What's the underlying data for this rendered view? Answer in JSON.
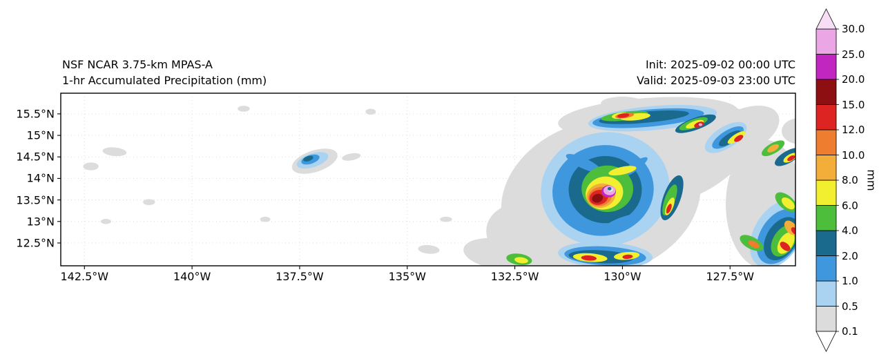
{
  "header": {
    "title": "NSF NCAR 3.75-km MPAS-A",
    "subtitle": "1-hr Accumulated Precipitation (mm)",
    "init": "Init: 2025-09-02 00:00 UTC",
    "valid": "Valid: 2025-09-03 23:00 UTC"
  },
  "chart_data": {
    "type": "heatmap",
    "title": "NSF NCAR 3.75-km MPAS-A",
    "subtitle": "1-hr Accumulated Precipitation (mm)",
    "init_time": "2025-09-02 00:00 UTC",
    "valid_time": "2025-09-03 23:00 UTC",
    "xlabel": "",
    "ylabel": "",
    "xlim": [
      -143.05,
      -125.98
    ],
    "ylim": [
      11.97,
      15.98
    ],
    "grid": "dotted",
    "legend_position": "right",
    "x_ticks": [
      {
        "value": -142.5,
        "label": "142.5°W"
      },
      {
        "value": -140.0,
        "label": "140°W"
      },
      {
        "value": -137.5,
        "label": "137.5°W"
      },
      {
        "value": -135.0,
        "label": "135°W"
      },
      {
        "value": -132.5,
        "label": "132.5°W"
      },
      {
        "value": -130.0,
        "label": "130°W"
      },
      {
        "value": -127.5,
        "label": "127.5°W"
      }
    ],
    "y_ticks": [
      {
        "value": 15.5,
        "label": "15.5°N"
      },
      {
        "value": 15.0,
        "label": "15°N"
      },
      {
        "value": 14.5,
        "label": "14.5°N"
      },
      {
        "value": 14.0,
        "label": "14°N"
      },
      {
        "value": 13.5,
        "label": "13.5°N"
      },
      {
        "value": 13.0,
        "label": "13°N"
      },
      {
        "value": 12.5,
        "label": "12.5°N"
      }
    ],
    "colorbar": {
      "units": "mm",
      "orientation": "vertical",
      "extend": "both",
      "levels": [
        0.1,
        0.5,
        1,
        2,
        4,
        6,
        8,
        10,
        12,
        15,
        20,
        25,
        30
      ],
      "labels": [
        "0.1",
        "0.5",
        "1.0",
        "2.0",
        "4.0",
        "6.0",
        "8.0",
        "10.0",
        "12.0",
        "15.0",
        "20.0",
        "25.0",
        "30.0"
      ],
      "colors": [
        "#dcdcdc",
        "#a9d3f0",
        "#3f97dd",
        "#1a6a8e",
        "#4dbe3b",
        "#f2ef30",
        "#f3ae3a",
        "#ee7d30",
        "#dd2423",
        "#8e0f12",
        "#c126c1",
        "#eba6e6"
      ],
      "under_color": "#ffffff",
      "over_color": "#f7ddf5"
    },
    "features_format": "[lon_deg, lat_deg, rx_deg, ry_deg, rotation_deg, precip_level_mm]",
    "features": [
      [
        -130.5,
        13.55,
        2.35,
        1.8,
        -15,
        0.1
      ],
      [
        -128.5,
        14.55,
        1.7,
        0.95,
        -28,
        0.1
      ],
      [
        -131.9,
        12.55,
        1.3,
        0.85,
        18,
        0.1
      ],
      [
        -129.4,
        15.42,
        2.1,
        0.45,
        -4,
        0.1
      ],
      [
        -126.7,
        13.4,
        0.9,
        1.5,
        0,
        0.1
      ],
      [
        -127.2,
        15.1,
        0.9,
        0.5,
        -25,
        0.1
      ],
      [
        -132.9,
        12.25,
        0.8,
        0.35,
        8,
        0.1
      ],
      [
        -137.15,
        14.4,
        0.55,
        0.25,
        -18,
        0.1
      ],
      [
        -130.0,
        15.75,
        0.5,
        0.15,
        0,
        0.1
      ],
      [
        -138.8,
        15.62,
        0.14,
        0.07,
        0,
        0.1
      ],
      [
        -135.85,
        15.55,
        0.12,
        0.07,
        0,
        0.1
      ],
      [
        -136.3,
        14.5,
        0.22,
        0.08,
        -10,
        0.1
      ],
      [
        -141.8,
        14.62,
        0.28,
        0.1,
        5,
        0.1
      ],
      [
        -142.35,
        14.28,
        0.18,
        0.09,
        0,
        0.1
      ],
      [
        -141.0,
        13.45,
        0.14,
        0.07,
        0,
        0.1
      ],
      [
        -142.0,
        13.0,
        0.12,
        0.06,
        0,
        0.1
      ],
      [
        -138.3,
        13.05,
        0.12,
        0.06,
        0,
        0.1
      ],
      [
        -134.1,
        13.05,
        0.14,
        0.06,
        0,
        0.1
      ],
      [
        -134.5,
        12.35,
        0.25,
        0.1,
        5,
        0.1
      ],
      [
        -125.9,
        15.1,
        0.4,
        0.3,
        0,
        0.1
      ],
      [
        -130.4,
        13.75,
        1.5,
        1.32,
        -10,
        0.5
      ],
      [
        -129.3,
        15.4,
        1.5,
        0.28,
        -5,
        0.5
      ],
      [
        -130.4,
        12.22,
        1.1,
        0.3,
        3,
        0.5
      ],
      [
        -137.2,
        14.42,
        0.38,
        0.16,
        -18,
        0.5
      ],
      [
        -127.6,
        14.95,
        0.55,
        0.25,
        -32,
        0.5
      ],
      [
        -126.4,
        12.7,
        0.55,
        0.85,
        30,
        0.5
      ],
      [
        -130.45,
        13.72,
        1.18,
        1.05,
        -10,
        1
      ],
      [
        -129.4,
        15.4,
        1.3,
        0.2,
        -5,
        1
      ],
      [
        -130.4,
        12.2,
        0.95,
        0.22,
        3,
        1
      ],
      [
        -137.25,
        14.44,
        0.22,
        0.1,
        -18,
        1
      ],
      [
        -127.55,
        14.95,
        0.42,
        0.16,
        -32,
        1
      ],
      [
        -126.35,
        12.65,
        0.45,
        0.7,
        32,
        1
      ],
      [
        -130.4,
        13.74,
        0.85,
        0.78,
        0,
        2
      ],
      [
        -129.5,
        15.42,
        1.05,
        0.13,
        -5,
        2
      ],
      [
        -128.3,
        15.27,
        0.5,
        0.14,
        -20,
        2
      ],
      [
        -130.5,
        12.18,
        0.75,
        0.15,
        3,
        2
      ],
      [
        -128.85,
        13.55,
        0.2,
        0.55,
        20,
        2
      ],
      [
        -137.3,
        14.46,
        0.12,
        0.06,
        -18,
        2
      ],
      [
        -127.5,
        14.93,
        0.3,
        0.11,
        -32,
        2
      ],
      [
        -126.3,
        12.6,
        0.35,
        0.55,
        32,
        2
      ],
      [
        -126.15,
        14.5,
        0.35,
        0.14,
        -30,
        2
      ],
      [
        -129.75,
        14.25,
        0.4,
        0.1,
        -35,
        1
      ],
      [
        -130.9,
        14.35,
        0.45,
        0.12,
        25,
        1
      ],
      [
        -131.15,
        13.2,
        0.4,
        0.1,
        55,
        1
      ],
      [
        -130.0,
        13.0,
        0.45,
        0.1,
        -20,
        1
      ],
      [
        -130.35,
        13.76,
        0.6,
        0.54,
        0,
        4
      ],
      [
        -129.95,
        15.45,
        0.55,
        0.1,
        -7,
        4
      ],
      [
        -128.35,
        15.27,
        0.35,
        0.1,
        -20,
        4
      ],
      [
        -128.9,
        13.5,
        0.12,
        0.38,
        20,
        4
      ],
      [
        -126.25,
        12.55,
        0.25,
        0.4,
        32,
        4
      ],
      [
        -127.0,
        12.5,
        0.3,
        0.14,
        28,
        4
      ],
      [
        -132.4,
        12.12,
        0.3,
        0.13,
        8,
        4
      ],
      [
        -126.2,
        13.45,
        0.3,
        0.16,
        40,
        4
      ],
      [
        -126.5,
        14.7,
        0.3,
        0.12,
        -30,
        4
      ],
      [
        -130.42,
        13.66,
        0.44,
        0.38,
        -15,
        6
      ],
      [
        -130.0,
        14.18,
        0.33,
        0.09,
        -12,
        6
      ],
      [
        -129.7,
        15.43,
        0.35,
        0.08,
        -6,
        6
      ],
      [
        -130.05,
        15.46,
        0.2,
        0.07,
        -8,
        6
      ],
      [
        -128.32,
        15.26,
        0.22,
        0.07,
        -20,
        6
      ],
      [
        -128.9,
        13.35,
        0.08,
        0.22,
        22,
        6
      ],
      [
        -130.75,
        12.16,
        0.4,
        0.1,
        4,
        6
      ],
      [
        -129.9,
        12.2,
        0.3,
        0.09,
        -5,
        6
      ],
      [
        -126.2,
        12.5,
        0.16,
        0.28,
        32,
        6
      ],
      [
        -126.15,
        13.42,
        0.18,
        0.1,
        40,
        6
      ],
      [
        -132.35,
        12.1,
        0.16,
        0.07,
        8,
        6
      ],
      [
        -126.1,
        14.48,
        0.18,
        0.08,
        -30,
        6
      ],
      [
        -127.35,
        14.95,
        0.24,
        0.08,
        -33,
        6
      ],
      [
        -130.5,
        13.6,
        0.34,
        0.28,
        -15,
        8
      ],
      [
        -126.08,
        12.85,
        0.2,
        0.12,
        50,
        8
      ],
      [
        -126.5,
        14.7,
        0.15,
        0.07,
        -30,
        8
      ],
      [
        -130.52,
        13.58,
        0.28,
        0.22,
        -15,
        10
      ],
      [
        -129.95,
        15.46,
        0.22,
        0.06,
        -8,
        10
      ],
      [
        -126.95,
        12.47,
        0.14,
        0.07,
        28,
        10
      ],
      [
        -130.55,
        13.56,
        0.22,
        0.17,
        -15,
        12
      ],
      [
        -129.98,
        15.46,
        0.14,
        0.05,
        -8,
        12
      ],
      [
        -128.22,
        15.25,
        0.12,
        0.06,
        -20,
        12
      ],
      [
        -127.3,
        14.93,
        0.12,
        0.06,
        -33,
        12
      ],
      [
        -130.78,
        12.15,
        0.18,
        0.06,
        4,
        12
      ],
      [
        -129.88,
        12.18,
        0.12,
        0.05,
        -5,
        12
      ],
      [
        -126.22,
        12.42,
        0.14,
        0.08,
        40,
        12
      ],
      [
        -126.0,
        12.78,
        0.1,
        0.06,
        50,
        12
      ],
      [
        -128.92,
        13.3,
        0.05,
        0.12,
        22,
        12
      ],
      [
        -126.08,
        14.47,
        0.1,
        0.05,
        -30,
        12
      ],
      [
        -130.58,
        13.54,
        0.13,
        0.1,
        -15,
        15
      ],
      [
        -128.2,
        15.25,
        0.05,
        0.04,
        0,
        15
      ],
      [
        -130.32,
        13.7,
        0.17,
        0.14,
        0,
        20
      ],
      [
        -130.3,
        13.72,
        0.14,
        0.11,
        0,
        25
      ],
      [
        -128.19,
        15.25,
        0.045,
        0.035,
        0,
        25
      ],
      [
        -130.28,
        13.74,
        0.06,
        0.05,
        0,
        30
      ],
      [
        -130.3,
        13.76,
        0.045,
        0.04,
        0,
        2
      ]
    ]
  }
}
